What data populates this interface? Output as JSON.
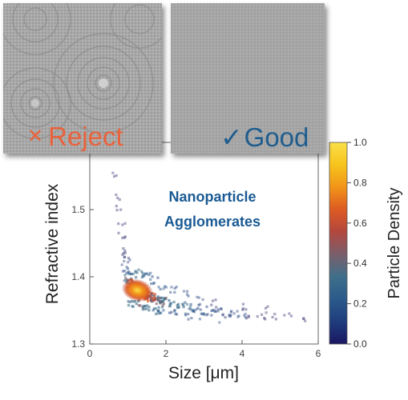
{
  "reject_tile": {
    "icon": "x-mark-icon",
    "icon_glyph": "✕",
    "label": "Reject",
    "color": "#e8623b"
  },
  "good_tile": {
    "icon": "check-mark-icon",
    "icon_glyph": "✓",
    "label": "Good",
    "color": "#1f5d8e"
  },
  "chart_data": {
    "type": "scatter",
    "title": "",
    "xlabel": "Size [μm]",
    "ylabel": "Refractive index",
    "xlim": [
      0,
      6
    ],
    "ylim": [
      1.3,
      1.6
    ],
    "xticks": [
      0,
      2,
      4,
      6
    ],
    "yticks": [
      1.3,
      1.4,
      1.5
    ],
    "colorbar": {
      "label": "Particle Density",
      "range": [
        0.0,
        1.0
      ],
      "ticks": [
        "0.0",
        "0.2",
        "0.4",
        "0.6",
        "0.8",
        "1.0"
      ],
      "colormap": [
        "#1a1760",
        "#1f3d7d",
        "#2a5a8a",
        "#3f6f8a",
        "#7a5f6b",
        "#b2473f",
        "#dd5a22",
        "#f29419",
        "#f7c41c",
        "#fbe04a"
      ]
    },
    "annotation": [
      "Nanoparticle",
      "Agglomerates"
    ],
    "density_core": {
      "x": 1.25,
      "y": 1.38,
      "peak": 1.0
    },
    "points": [
      {
        "x": 0.7,
        "y": 1.55,
        "d": 0.03
      },
      {
        "x": 0.75,
        "y": 1.52,
        "d": 0.03
      },
      {
        "x": 0.8,
        "y": 1.5,
        "d": 0.04
      },
      {
        "x": 0.82,
        "y": 1.48,
        "d": 0.04
      },
      {
        "x": 0.85,
        "y": 1.46,
        "d": 0.05
      },
      {
        "x": 0.9,
        "y": 1.44,
        "d": 0.06
      },
      {
        "x": 0.92,
        "y": 1.43,
        "d": 0.07
      },
      {
        "x": 0.95,
        "y": 1.42,
        "d": 0.1
      },
      {
        "x": 0.98,
        "y": 1.41,
        "d": 0.15
      },
      {
        "x": 1.0,
        "y": 1.4,
        "d": 0.35
      },
      {
        "x": 1.05,
        "y": 1.395,
        "d": 0.5
      },
      {
        "x": 1.1,
        "y": 1.39,
        "d": 0.7
      },
      {
        "x": 1.2,
        "y": 1.385,
        "d": 0.9
      },
      {
        "x": 1.3,
        "y": 1.38,
        "d": 1.0
      },
      {
        "x": 1.4,
        "y": 1.375,
        "d": 0.95
      },
      {
        "x": 1.5,
        "y": 1.372,
        "d": 0.85
      },
      {
        "x": 1.6,
        "y": 1.37,
        "d": 0.75
      },
      {
        "x": 1.7,
        "y": 1.368,
        "d": 0.65
      },
      {
        "x": 1.8,
        "y": 1.366,
        "d": 0.55
      },
      {
        "x": 1.9,
        "y": 1.365,
        "d": 0.5
      },
      {
        "x": 2.0,
        "y": 1.363,
        "d": 0.45
      },
      {
        "x": 2.2,
        "y": 1.36,
        "d": 0.4
      },
      {
        "x": 2.4,
        "y": 1.357,
        "d": 0.35
      },
      {
        "x": 2.6,
        "y": 1.355,
        "d": 0.3
      },
      {
        "x": 2.8,
        "y": 1.352,
        "d": 0.25
      },
      {
        "x": 3.0,
        "y": 1.35,
        "d": 0.2
      },
      {
        "x": 3.2,
        "y": 1.348,
        "d": 0.18
      },
      {
        "x": 3.4,
        "y": 1.347,
        "d": 0.15
      },
      {
        "x": 3.6,
        "y": 1.346,
        "d": 0.12
      },
      {
        "x": 3.8,
        "y": 1.345,
        "d": 0.1
      },
      {
        "x": 4.0,
        "y": 1.344,
        "d": 0.08
      },
      {
        "x": 4.2,
        "y": 1.343,
        "d": 0.06
      },
      {
        "x": 4.5,
        "y": 1.342,
        "d": 0.05
      },
      {
        "x": 4.8,
        "y": 1.341,
        "d": 0.04
      },
      {
        "x": 5.2,
        "y": 1.34,
        "d": 0.03
      },
      {
        "x": 5.6,
        "y": 1.34,
        "d": 0.03
      },
      {
        "x": 1.1,
        "y": 1.36,
        "d": 0.4
      },
      {
        "x": 1.3,
        "y": 1.36,
        "d": 0.5
      },
      {
        "x": 1.5,
        "y": 1.355,
        "d": 0.45
      },
      {
        "x": 1.7,
        "y": 1.35,
        "d": 0.35
      },
      {
        "x": 1.9,
        "y": 1.35,
        "d": 0.3
      },
      {
        "x": 2.2,
        "y": 1.345,
        "d": 0.25
      },
      {
        "x": 2.6,
        "y": 1.34,
        "d": 0.18
      },
      {
        "x": 3.0,
        "y": 1.34,
        "d": 0.12
      },
      {
        "x": 3.5,
        "y": 1.338,
        "d": 0.08
      },
      {
        "x": 1.1,
        "y": 1.41,
        "d": 0.3
      },
      {
        "x": 1.3,
        "y": 1.405,
        "d": 0.35
      },
      {
        "x": 1.5,
        "y": 1.4,
        "d": 0.3
      },
      {
        "x": 1.7,
        "y": 1.395,
        "d": 0.25
      },
      {
        "x": 1.9,
        "y": 1.385,
        "d": 0.2
      },
      {
        "x": 2.2,
        "y": 1.38,
        "d": 0.15
      },
      {
        "x": 2.5,
        "y": 1.375,
        "d": 0.12
      },
      {
        "x": 2.9,
        "y": 1.365,
        "d": 0.1
      },
      {
        "x": 3.3,
        "y": 1.36,
        "d": 0.07
      },
      {
        "x": 4.1,
        "y": 1.355,
        "d": 0.05
      },
      {
        "x": 4.6,
        "y": 1.35,
        "d": 0.04
      }
    ]
  }
}
